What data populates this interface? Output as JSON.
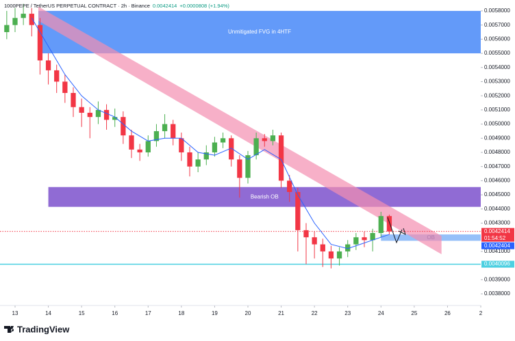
{
  "header": {
    "title": "1000PEPE / TetherUS PERPETUAL CONTRACT · 2h · Binance",
    "price": 0.0042414,
    "change": "+0.0000808 (+1.94%)"
  },
  "chart_data": {
    "type": "candlestick",
    "x": [
      12.75,
      13,
      13.25,
      13.5,
      13.75,
      14,
      14.25,
      14.5,
      14.75,
      15,
      15.25,
      15.5,
      15.75,
      16,
      16.25,
      16.5,
      16.75,
      17,
      17.25,
      17.5,
      17.75,
      18,
      18.25,
      18.5,
      18.75,
      19,
      19.25,
      19.5,
      19.75,
      20,
      20.25,
      20.5,
      20.75,
      21,
      21.25,
      21.5,
      21.75,
      22,
      22.25,
      22.5,
      22.75,
      23,
      23.25,
      23.5,
      23.75,
      24,
      24.25
    ],
    "open": [
      0.00565,
      0.0057,
      0.00575,
      0.00578,
      0.0057,
      0.00545,
      0.00538,
      0.0053,
      0.00522,
      0.00512,
      0.00508,
      0.00505,
      0.0051,
      0.00503,
      0.00505,
      0.00492,
      0.00482,
      0.0048,
      0.00488,
      0.00495,
      0.005,
      0.0049,
      0.0048,
      0.0047,
      0.00475,
      0.0048,
      0.00487,
      0.0049,
      0.00475,
      0.00462,
      0.00478,
      0.0049,
      0.00488,
      0.00492,
      0.0046,
      0.00452,
      0.00425,
      0.0042,
      0.00415,
      0.0041,
      0.00405,
      0.0041,
      0.00415,
      0.0042,
      0.00418,
      0.00423,
      0.00435
    ],
    "high": [
      0.0058,
      0.00582,
      0.00585,
      0.00582,
      0.00575,
      0.0055,
      0.00542,
      0.00535,
      0.00526,
      0.00518,
      0.00512,
      0.00516,
      0.00514,
      0.00511,
      0.00509,
      0.00496,
      0.00486,
      0.00492,
      0.005,
      0.00507,
      0.00503,
      0.00494,
      0.00484,
      0.0048,
      0.00485,
      0.00491,
      0.00494,
      0.00492,
      0.00478,
      0.00481,
      0.00494,
      0.00493,
      0.00496,
      0.00494,
      0.00464,
      0.00455,
      0.0043,
      0.00424,
      0.00419,
      0.00414,
      0.00413,
      0.00418,
      0.00423,
      0.00424,
      0.00426,
      0.00438,
      0.00436
    ],
    "low": [
      0.0056,
      0.00565,
      0.0057,
      0.00562,
      0.00535,
      0.00528,
      0.00522,
      0.00515,
      0.00505,
      0.00498,
      0.0049,
      0.005,
      0.00496,
      0.00498,
      0.00486,
      0.00476,
      0.00474,
      0.00477,
      0.00484,
      0.0049,
      0.00485,
      0.00474,
      0.00463,
      0.00466,
      0.00471,
      0.00477,
      0.00483,
      0.0047,
      0.00448,
      0.00458,
      0.00475,
      0.00484,
      0.00485,
      0.00455,
      0.00445,
      0.0041,
      0.00401,
      0.00405,
      0.00399,
      0.00398,
      0.004,
      0.00406,
      0.00411,
      0.00413,
      0.0041,
      0.0042,
      0.00422
    ],
    "close": [
      0.0057,
      0.00575,
      0.00578,
      0.0057,
      0.00545,
      0.00538,
      0.0053,
      0.00522,
      0.00512,
      0.00508,
      0.00505,
      0.0051,
      0.00503,
      0.00505,
      0.00492,
      0.00482,
      0.0048,
      0.00488,
      0.00495,
      0.005,
      0.0049,
      0.0048,
      0.0047,
      0.00475,
      0.0048,
      0.00487,
      0.0049,
      0.00475,
      0.00462,
      0.00478,
      0.0049,
      0.00488,
      0.00492,
      0.0046,
      0.00452,
      0.00425,
      0.0042,
      0.00415,
      0.0041,
      0.00405,
      0.0041,
      0.00415,
      0.0042,
      0.00418,
      0.00423,
      0.00435,
      0.0042414
    ],
    "up_color": "#4caf50",
    "down_color": "#f23645",
    "xlim": [
      12.547,
      27
    ],
    "xticks": [
      13,
      14,
      15,
      16,
      17,
      18,
      19,
      20,
      21,
      22,
      23,
      24,
      25,
      26,
      {
        "value": 27,
        "label": "2"
      }
    ],
    "ylim": [
      0.003776,
      0.005877
    ],
    "yticks": [
      {
        "value": 0.0058,
        "label": "0.0058000"
      },
      {
        "value": 0.0057,
        "label": "0.0057000"
      },
      {
        "value": 0.0056,
        "label": "0.0056000"
      },
      {
        "value": 0.0055,
        "label": "0.0055000"
      },
      {
        "value": 0.0054,
        "label": "0.0054000"
      },
      {
        "value": 0.0053,
        "label": "0.0053000"
      },
      {
        "value": 0.0052,
        "label": "0.0052000"
      },
      {
        "value": 0.0051,
        "label": "0.0051000"
      },
      {
        "value": 0.005,
        "label": "0.0050000"
      },
      {
        "value": 0.0049,
        "label": "0.0049000"
      },
      {
        "value": 0.0048,
        "label": "0.0048000"
      },
      {
        "value": 0.0047,
        "label": "0.0047000"
      },
      {
        "value": 0.0046,
        "label": "0.0046000"
      },
      {
        "value": 0.0045,
        "label": "0.0045000"
      },
      {
        "value": 0.0044,
        "label": "0.0044000"
      },
      {
        "value": 0.0043,
        "label": "0.0043000"
      },
      {
        "value": 0.0041,
        "label": "0.0041000"
      },
      {
        "value": 0.0039,
        "label": "0.0039000"
      },
      {
        "value": 0.0038,
        "label": "0.0038000"
      }
    ],
    "ma": {
      "color": "#2962ff",
      "x": [
        13.5,
        14,
        14.5,
        15,
        15.5,
        16,
        16.5,
        17,
        17.5,
        18,
        18.5,
        19,
        19.5,
        20,
        20.5,
        21,
        21.5,
        22,
        22.5,
        23,
        23.5,
        24,
        24.25
      ],
      "values": [
        0.00575,
        0.00555,
        0.00535,
        0.0052,
        0.0051,
        0.00505,
        0.00495,
        0.00488,
        0.0049,
        0.0049,
        0.0048,
        0.00478,
        0.00483,
        0.00475,
        0.00482,
        0.00475,
        0.0045,
        0.0043,
        0.00415,
        0.00412,
        0.00416,
        0.0042,
        0.00422
      ]
    },
    "zones": [
      {
        "label": "Unmitigated FVG in 4HTF",
        "color": "#5b95f9",
        "text_color": "#ffffff",
        "x": [
          13.7,
          27
        ],
        "y": [
          0.0055,
          0.0058
        ]
      },
      {
        "label": "Bearish OB",
        "color": "#8a63d2",
        "text_color": "#ffffff",
        "x": [
          14,
          27
        ],
        "y": [
          0.004415,
          0.004555
        ]
      },
      {
        "label": "OB",
        "color": "#90bdf9",
        "text_color": "#1e4fa0",
        "x": [
          24,
          27
        ],
        "y": [
          0.004175,
          0.00422
        ]
      }
    ],
    "channel": {
      "color": "#f48fb1",
      "x": [
        13.7,
        25.82
      ],
      "upper": [
        0.00583,
        0.00421
      ],
      "lower": [
        0.00573,
        0.00408
      ]
    },
    "levels": [
      {
        "value": 0.0042414,
        "color": "#f23645",
        "style": "dotted"
      },
      {
        "value": 0.0040096,
        "color": "#4dd0e1",
        "style": "solid"
      }
    ],
    "price_labels": [
      {
        "value": 0.0042414,
        "color": "#f23645",
        "sub": "01:54:52"
      },
      {
        "value": 0.0042404,
        "color": "#2962ff"
      },
      {
        "value": 0.0040096,
        "color": "#4dd0e1"
      }
    ]
  },
  "footer": {
    "brand": "TradingView"
  }
}
